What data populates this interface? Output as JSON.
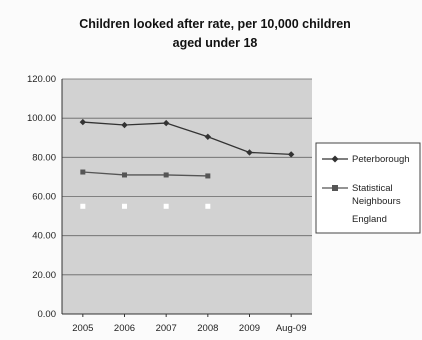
{
  "chart_data": {
    "type": "line",
    "title_lines": [
      "Children looked after rate, per 10,000 children",
      "aged under 18"
    ],
    "xlabel": "",
    "ylabel": "",
    "categories": [
      "2005",
      "2006",
      "2007",
      "2008",
      "2009",
      "Aug-09"
    ],
    "y_ticks": [
      "0.00",
      "20.00",
      "40.00",
      "60.00",
      "80.00",
      "100.00",
      "120.00"
    ],
    "ylim": [
      0,
      120
    ],
    "grid": true,
    "legend_position": "right",
    "series": [
      {
        "name": "Peterborough",
        "values": [
          98,
          96.5,
          97.5,
          90.5,
          82.5,
          81.5
        ],
        "color": "#333333",
        "marker": "diamond"
      },
      {
        "name": "Statistical Neighbours",
        "name_lines": [
          "Statistical",
          "Neighbours"
        ],
        "values": [
          72.5,
          71,
          71,
          70.5,
          null,
          null
        ],
        "color": "#555555",
        "marker": "square"
      },
      {
        "name": "England",
        "values": [
          55,
          55,
          55,
          55,
          null,
          null
        ],
        "color": "#ffffff",
        "marker": "square"
      }
    ],
    "colors": {
      "plot_bg": "#d2d2d2",
      "gridline": "#666666",
      "background": "#fbfbfb",
      "legend_border": "#444444"
    }
  }
}
